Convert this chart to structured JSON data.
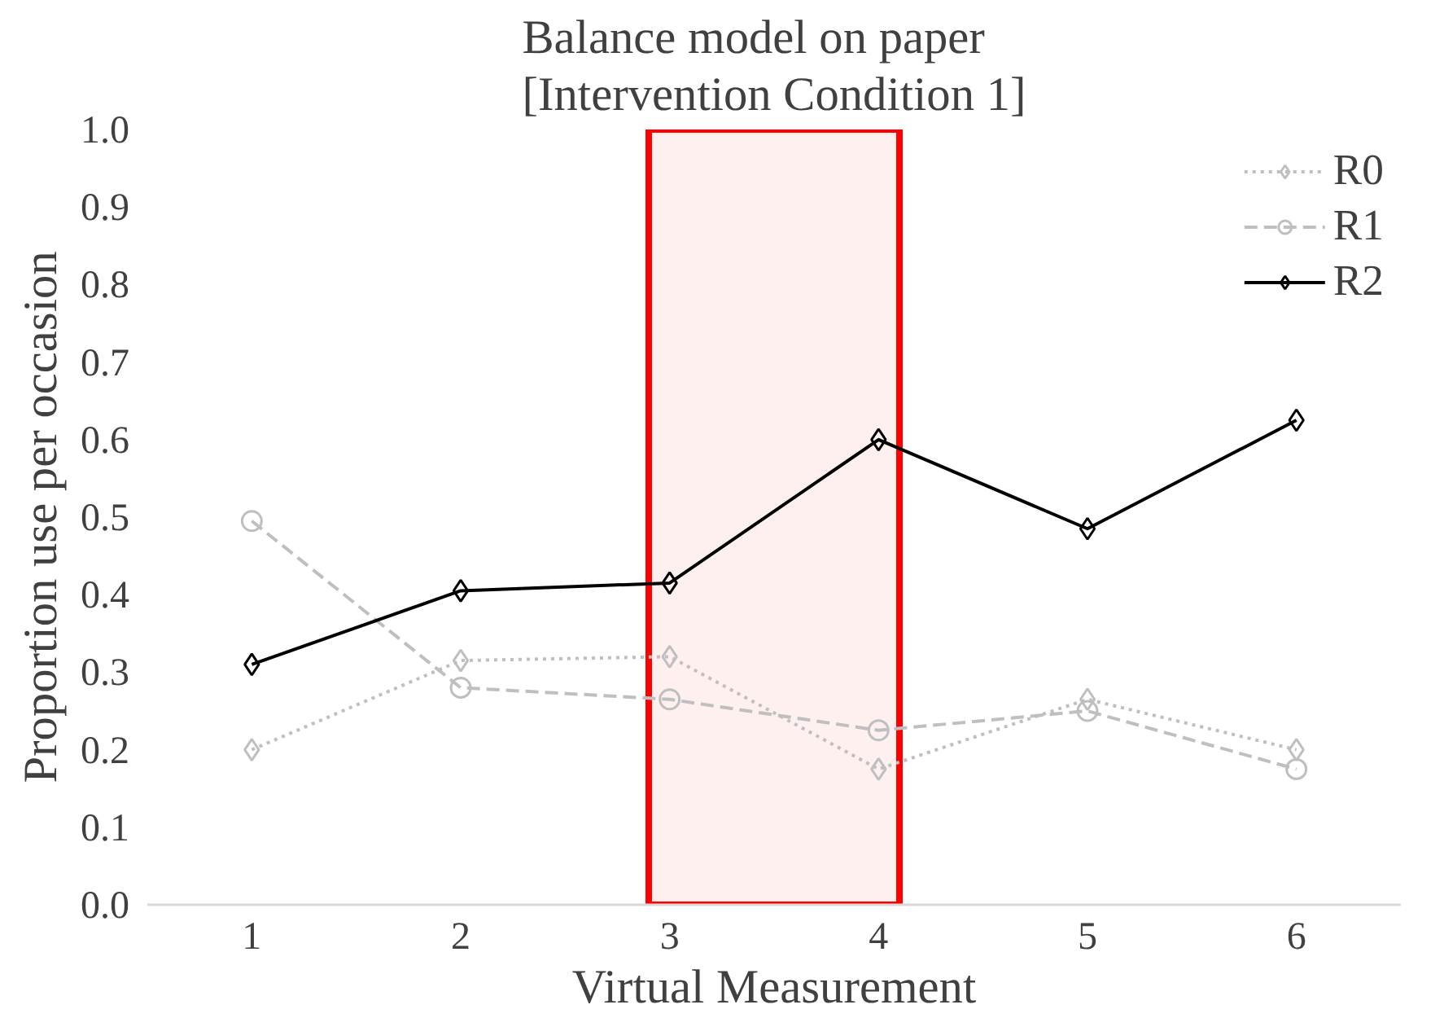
{
  "chart_data": {
    "type": "line",
    "title": "Balance model on paper\n[Intervention Condition 1]",
    "xlabel": "Virtual Measurement",
    "ylabel": "Proportion use per occasion",
    "x": [
      1,
      2,
      3,
      4,
      5,
      6
    ],
    "xlim": [
      0.5,
      6.5
    ],
    "xticks": [
      1,
      2,
      3,
      4,
      5,
      6
    ],
    "ylim": [
      0,
      1
    ],
    "yticks": [
      {
        "value": 0,
        "label": "0.0"
      },
      {
        "value": 0.1,
        "label": "0.1"
      },
      {
        "value": 0.2,
        "label": "0.2"
      },
      {
        "value": 0.3,
        "label": "0.3"
      },
      {
        "value": 0.4,
        "label": "0.4"
      },
      {
        "value": 0.5,
        "label": "0.5"
      },
      {
        "value": 0.6,
        "label": "0.6"
      },
      {
        "value": 0.7,
        "label": "0.7"
      },
      {
        "value": 0.8,
        "label": "0.8"
      },
      {
        "value": 0.9,
        "label": "0.9"
      },
      {
        "value": 1,
        "label": "1.0"
      }
    ],
    "series": [
      {
        "name": "R0",
        "color": "#bfbfbf",
        "marker": "diamond",
        "line_style": "dotted",
        "values": [
          0.2,
          0.315,
          0.32,
          0.175,
          0.265,
          0.2
        ]
      },
      {
        "name": "R1",
        "color": "#bfbfbf",
        "marker": "circle",
        "line_style": "dashed",
        "values": [
          0.495,
          0.28,
          0.265,
          0.225,
          0.25,
          0.175
        ]
      },
      {
        "name": "R2",
        "color": "#000000",
        "marker": "diamond",
        "line_style": "solid",
        "values": [
          0.31,
          0.405,
          0.415,
          0.6,
          0.485,
          0.625
        ]
      }
    ],
    "bands": [
      {
        "axis": "x",
        "from": 2.9,
        "to": 4.1,
        "color": "#ff0000"
      }
    ],
    "grid": false,
    "legend": "top right"
  }
}
